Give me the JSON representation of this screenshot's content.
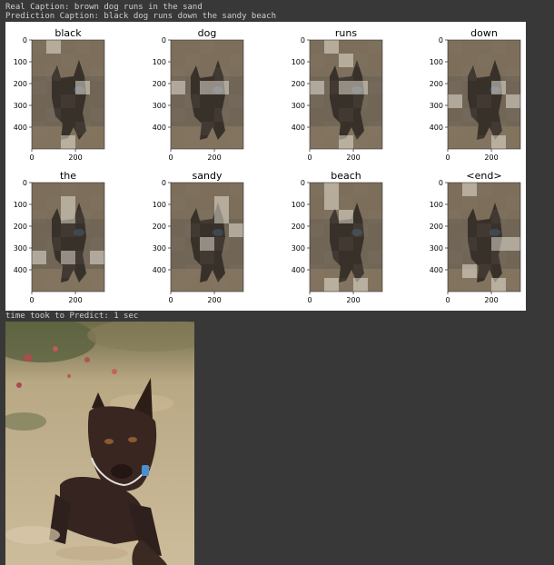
{
  "output": {
    "real_caption": "Real Caption: brown dog runs in the sand",
    "prediction_caption": "Prediction Caption: black dog runs down the sandy beach",
    "timing": "time took to Predict: 1 sec"
  },
  "chart_data": {
    "type": "heatmap",
    "panels": [
      {
        "title": "black"
      },
      {
        "title": "dog"
      },
      {
        "title": "runs"
      },
      {
        "title": "down"
      },
      {
        "title": "the"
      },
      {
        "title": "sandy"
      },
      {
        "title": "beach"
      },
      {
        "title": "<end>"
      }
    ],
    "x_ticks": [
      "0",
      "200"
    ],
    "y_ticks": [
      "0",
      "100",
      "200",
      "300",
      "400"
    ],
    "x_range": [
      0,
      333
    ],
    "y_range": [
      0,
      500
    ],
    "grid": false
  },
  "colors": {
    "background": "#383838",
    "text": "#cfcfcf",
    "figure_background": "#ffffff"
  }
}
